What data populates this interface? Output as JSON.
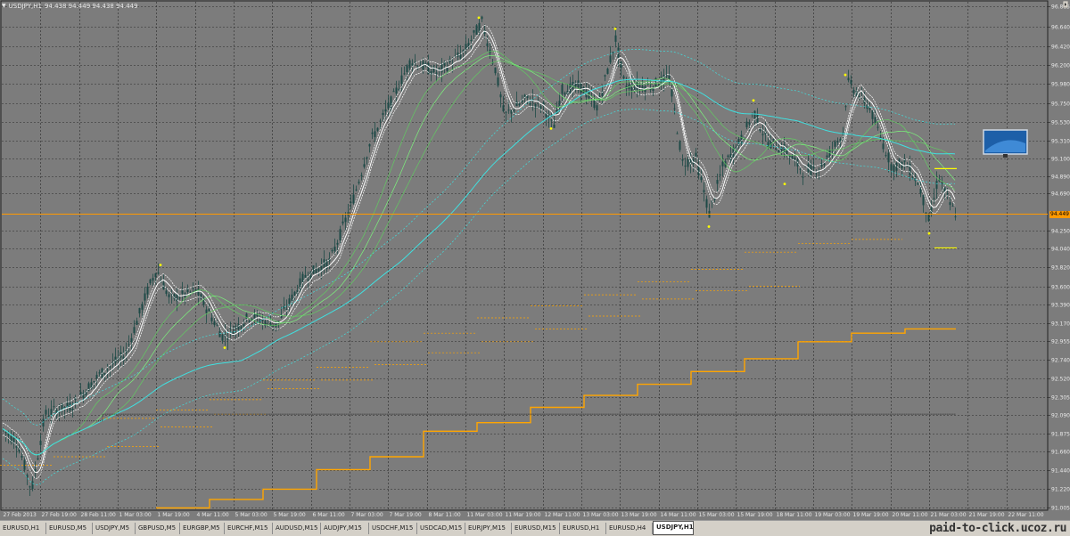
{
  "window": {
    "symbol_period": "USDJPY,H1",
    "ohlc": "94.438 94.449 94.438 94.449"
  },
  "current_price": "94.449",
  "colors": {
    "background": "#7c7c7c",
    "grid": "#2a2a2a",
    "candle": "#1e4a47",
    "ema_white": "#ffffff",
    "ma_green": "#5fd35f",
    "ma_cyan": "#40e0e0",
    "pivot_orange": "#ffa500",
    "fractal_yellow": "#ffff00",
    "bid_line": "#ff9900"
  },
  "price_axis": [
    "96.885",
    "96.640",
    "96.420",
    "96.200",
    "95.980",
    "95.750",
    "95.530",
    "95.310",
    "95.100",
    "94.890",
    "94.690",
    "94.449",
    "94.250",
    "94.040",
    "93.820",
    "93.600",
    "93.390",
    "93.170",
    "92.955",
    "92.740",
    "92.520",
    "92.305",
    "92.090",
    "91.875",
    "91.660",
    "91.440",
    "91.220",
    "91.005"
  ],
  "time_axis": [
    "27 Feb 2013",
    "27 Feb 19:00",
    "28 Feb 11:00",
    "1 Mar 03:00",
    "1 Mar 19:00",
    "4 Mar 11:00",
    "5 Mar 03:00",
    "5 Mar 19:00",
    "6 Mar 11:00",
    "7 Mar 03:00",
    "7 Mar 19:00",
    "8 Mar 11:00",
    "11 Mar 03:00",
    "11 Mar 19:00",
    "12 Mar 11:00",
    "13 Mar 03:00",
    "13 Mar 19:00",
    "14 Mar 11:00",
    "15 Mar 03:00",
    "15 Mar 19:00",
    "18 Mar 11:00",
    "19 Mar 03:00",
    "19 Mar 19:00",
    "20 Mar 11:00",
    "21 Mar 03:00",
    "21 Mar 19:00",
    "22 Mar 11:00"
  ],
  "tabs": [
    {
      "label": "EURUSD,H1"
    },
    {
      "label": "EURUSD,M5"
    },
    {
      "label": "USDJPY,M5"
    },
    {
      "label": "GBPUSD,M5"
    },
    {
      "label": "EURGBP,M5"
    },
    {
      "label": "EURCHF,M15"
    },
    {
      "label": "AUDUSD,M15"
    },
    {
      "label": "AUDJPY,M15"
    },
    {
      "label": "USDCHF,M15"
    },
    {
      "label": "USDCAD,M15"
    },
    {
      "label": "EURJPY,M15"
    },
    {
      "label": "EURUSD,M15"
    },
    {
      "label": "EURUSD,H1"
    },
    {
      "label": "EURUSD,H4"
    },
    {
      "label": "USDJPY,H1"
    }
  ],
  "active_tab": "USDJPY,H1",
  "watermark": "paid-to-click.ucoz.ru",
  "icons": {
    "menu": "triangle-down-icon",
    "desktop": "monitor-icon",
    "scroll": "scroll-right-icon"
  }
}
